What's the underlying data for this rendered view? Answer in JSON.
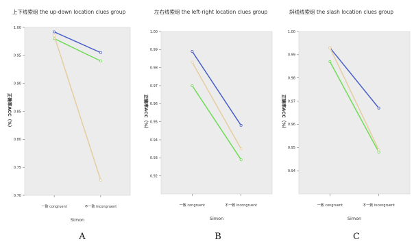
{
  "figure": {
    "letters": [
      "A",
      "B",
      "C"
    ]
  },
  "legend": {
    "series_colors": [
      "#4a5fc8",
      "#6fdc55",
      "#e6cda0"
    ]
  },
  "chart_data": [
    {
      "type": "line",
      "title": "上下线索组  the up-down location clues group",
      "xlabel": "Simon",
      "ylabel": "正确率ACC（%）",
      "categories": [
        "一致 congruent",
        "不一致 incongruent"
      ],
      "ylim": [
        0.7,
        1.0
      ],
      "yticks": [
        0.7,
        0.75,
        0.8,
        0.85,
        0.9,
        0.95,
        1.0
      ],
      "ytick_labels": [
        "0.70",
        "0.75",
        "0.80",
        "0.85",
        "0.90",
        "0.95",
        "1.00"
      ],
      "series": [
        {
          "values": [
            0.992,
            0.955
          ],
          "color": "#4a5fc8"
        },
        {
          "values": [
            0.98,
            0.94
          ],
          "color": "#6fdc55"
        },
        {
          "values": [
            0.985,
            0.727
          ],
          "color": "#e6cda0"
        }
      ]
    },
    {
      "type": "line",
      "title": "左右线索组  the left-right location clues group",
      "xlabel": "Simon",
      "ylabel": "正确率ACC（%）",
      "categories": [
        "一致 congruent",
        "不一致 incongruent"
      ],
      "ylim": [
        0.91,
        1.0
      ],
      "yticks": [
        0.92,
        0.93,
        0.94,
        0.95,
        0.96,
        0.97,
        0.98,
        0.99,
        1.0
      ],
      "ytick_labels": [
        "0.92",
        "0.93",
        "0.94",
        "0.95",
        "0.96",
        "0.97",
        "0.98",
        "0.99",
        "1.00"
      ],
      "series": [
        {
          "values": [
            0.989,
            0.948
          ],
          "color": "#4a5fc8"
        },
        {
          "values": [
            0.97,
            0.929
          ],
          "color": "#6fdc55"
        },
        {
          "values": [
            0.983,
            0.935
          ],
          "color": "#e6cda0"
        }
      ]
    },
    {
      "type": "line",
      "title": "斜线线索组  the slash location clues group",
      "xlabel": "Simon",
      "ylabel": "正确率ACC（%）",
      "categories": [
        "一致 congruent",
        "不一致 incongruent"
      ],
      "ylim": [
        0.93,
        1.0
      ],
      "yticks": [
        0.94,
        0.95,
        0.96,
        0.97,
        0.98,
        0.99,
        1.0
      ],
      "ytick_labels": [
        "0.94",
        "0.95",
        "0.96",
        "0.97",
        "0.98",
        "0.99",
        "1.00"
      ],
      "series": [
        {
          "values": [
            0.993,
            0.967
          ],
          "color": "#4a5fc8"
        },
        {
          "values": [
            0.987,
            0.948
          ],
          "color": "#6fdc55"
        },
        {
          "values": [
            0.993,
            0.949
          ],
          "color": "#e6cda0"
        }
      ]
    }
  ]
}
